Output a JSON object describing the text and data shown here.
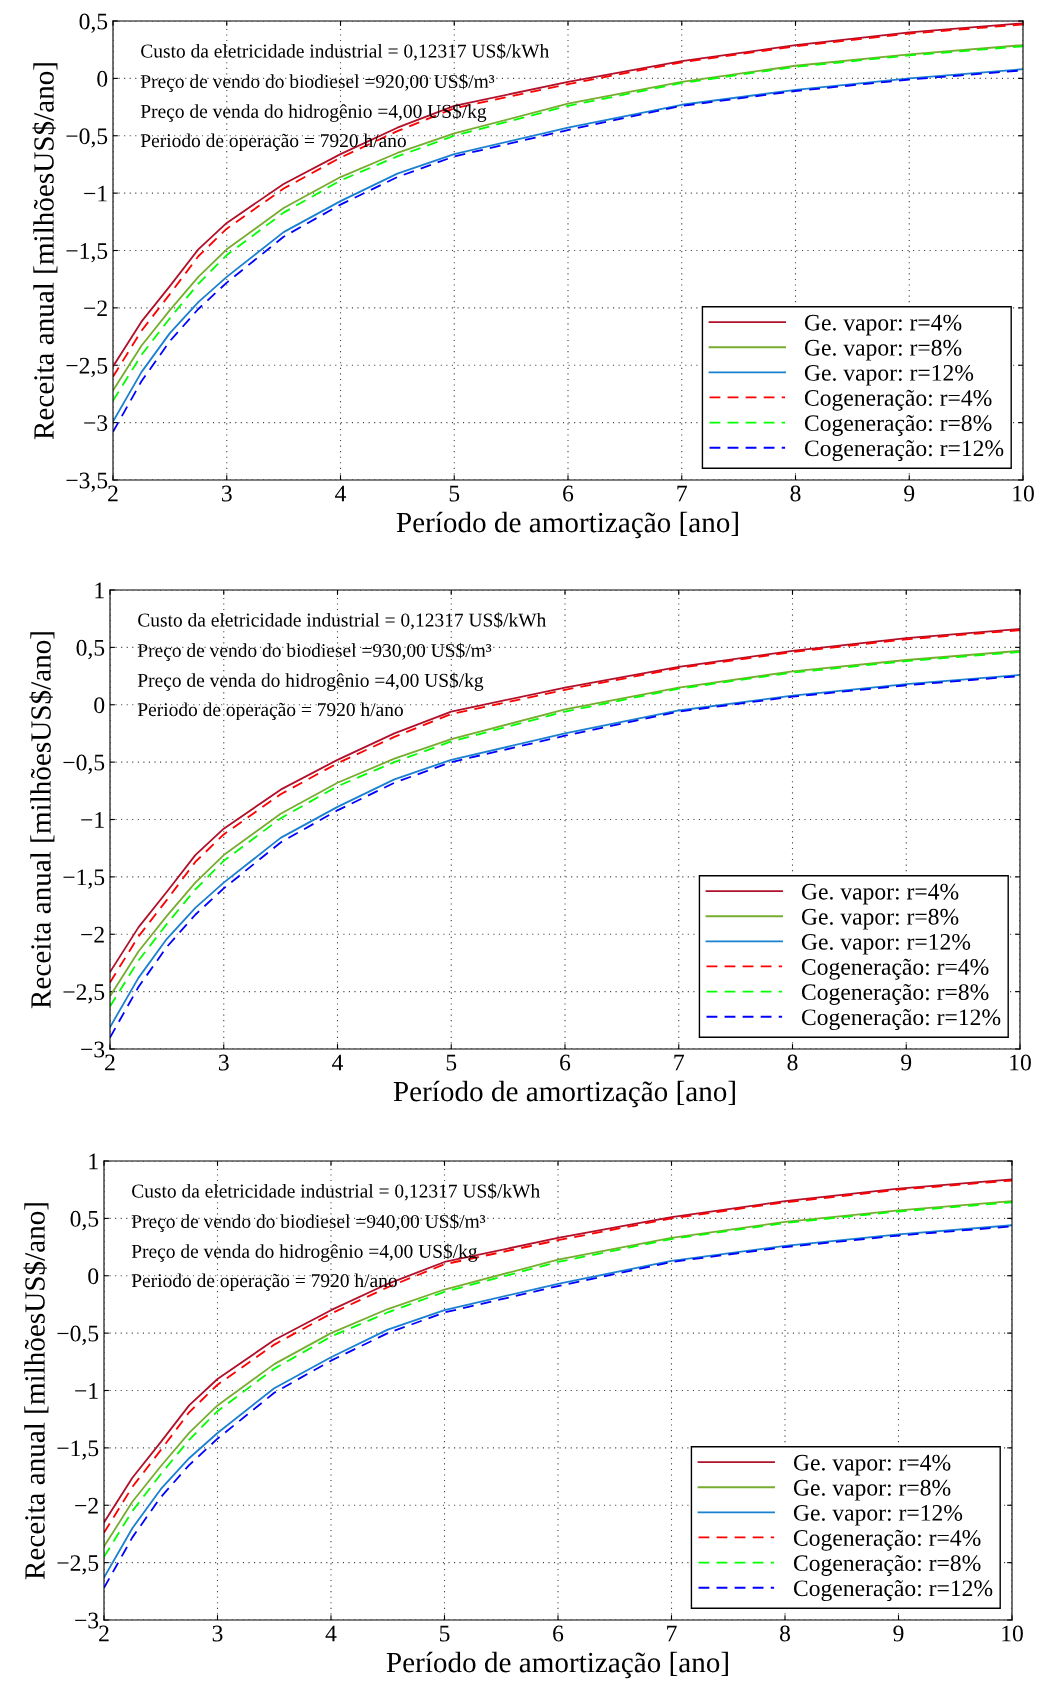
{
  "chart_data": [
    {
      "type": "line",
      "xlabel": "Período de amortização [ano]",
      "ylabel": "Receita anual [milhõesUS$/ano]",
      "annotations": [
        "Custo da eletricidade industrial = 0,12317 US$/kWh",
        "Preço de vendo do biodiesel =920,00 US$/m³",
        "Preço de venda do hidrogênio =4,00 US$/kg",
        "Periodo de operação = 7920 h/ano"
      ],
      "x": [
        2,
        2.25,
        2.5,
        2.75,
        3,
        3.5,
        4,
        4.5,
        5,
        6,
        7,
        8,
        9,
        10
      ],
      "xlim": [
        2,
        10
      ],
      "xticks": [
        2,
        3,
        4,
        5,
        6,
        7,
        8,
        9,
        10
      ],
      "ylim": [
        -3.5,
        0.5
      ],
      "yticks": [
        {
          "value": -3.5,
          "label": "−3,5"
        },
        {
          "value": -3,
          "label": "−3"
        },
        {
          "value": -2.5,
          "label": "−2,5"
        },
        {
          "value": -2,
          "label": "−2"
        },
        {
          "value": -1.5,
          "label": "−1,5"
        },
        {
          "value": -1,
          "label": "−1"
        },
        {
          "value": -0.5,
          "label": "−0,5"
        },
        {
          "value": 0,
          "label": "0"
        },
        {
          "value": 0.5,
          "label": "0,5"
        }
      ],
      "grid": true,
      "legend": "bottom right",
      "series": [
        {
          "name": "Ge. vapor: r=4%",
          "color": "#b0102a",
          "line_style": "solid",
          "values": [
            -2.51,
            -2.12,
            -1.81,
            -1.49,
            -1.26,
            -0.92,
            -0.66,
            -0.43,
            -0.24,
            -0.03,
            0.15,
            0.29,
            0.4,
            0.48
          ]
        },
        {
          "name": "Ge. vapor: r=8%",
          "color": "#77ac30",
          "line_style": "solid",
          "values": [
            -2.72,
            -2.33,
            -2.02,
            -1.73,
            -1.49,
            -1.13,
            -0.86,
            -0.65,
            -0.48,
            -0.22,
            -0.03,
            0.11,
            0.21,
            0.29
          ]
        },
        {
          "name": "Ge. vapor: r=12%",
          "color": "#1a80d0",
          "line_style": "solid",
          "values": [
            -2.99,
            -2.56,
            -2.22,
            -1.95,
            -1.73,
            -1.34,
            -1.07,
            -0.83,
            -0.66,
            -0.43,
            -0.23,
            -0.1,
            0.0,
            0.08
          ]
        },
        {
          "name": "Cogeneração: r=4%",
          "color": "#ff0000",
          "line_style": "dashed",
          "values": [
            -2.6,
            -2.2,
            -1.88,
            -1.55,
            -1.31,
            -0.96,
            -0.69,
            -0.46,
            -0.26,
            -0.05,
            0.14,
            0.28,
            0.39,
            0.47
          ]
        },
        {
          "name": "Cogeneração: r=8%",
          "color": "#00ff00",
          "line_style": "dashed",
          "values": [
            -2.81,
            -2.41,
            -2.09,
            -1.79,
            -1.54,
            -1.17,
            -0.89,
            -0.68,
            -0.5,
            -0.24,
            -0.04,
            0.1,
            0.2,
            0.28
          ]
        },
        {
          "name": "Cogeneração: r=12%",
          "color": "#0000ff",
          "line_style": "dashed",
          "values": [
            -3.08,
            -2.64,
            -2.29,
            -2.01,
            -1.78,
            -1.38,
            -1.1,
            -0.86,
            -0.68,
            -0.45,
            -0.24,
            -0.11,
            -0.01,
            0.07
          ]
        }
      ]
    },
    {
      "type": "line",
      "xlabel": "Período de amortização [ano]",
      "ylabel": "Receita anual [milhõesUS$/ano]",
      "annotations": [
        "Custo da eletricidade industrial = 0,12317 US$/kWh",
        "Preço de vendo do biodiesel =930,00 US$/m³",
        "Preço de venda do hidrogênio =4,00 US$/kg",
        "Periodo de operação = 7920 h/ano"
      ],
      "x": [
        2,
        2.25,
        2.5,
        2.75,
        3,
        3.5,
        4,
        4.5,
        5,
        6,
        7,
        8,
        9,
        10
      ],
      "xlim": [
        2,
        10
      ],
      "xticks": [
        2,
        3,
        4,
        5,
        6,
        7,
        8,
        9,
        10
      ],
      "ylim": [
        -3,
        1
      ],
      "yticks": [
        {
          "value": -3,
          "label": "−3"
        },
        {
          "value": -2.5,
          "label": "−2,5"
        },
        {
          "value": -2,
          "label": "−2"
        },
        {
          "value": -1.5,
          "label": "−1,5"
        },
        {
          "value": -1,
          "label": "−1"
        },
        {
          "value": -0.5,
          "label": "−0,5"
        },
        {
          "value": 0,
          "label": "0"
        },
        {
          "value": 0.5,
          "label": "0,5"
        },
        {
          "value": 1,
          "label": "1"
        }
      ],
      "grid": true,
      "legend": "bottom right",
      "series": [
        {
          "name": "Ge. vapor: r=4%",
          "color": "#b0102a",
          "line_style": "solid",
          "values": [
            -2.33,
            -1.94,
            -1.63,
            -1.31,
            -1.08,
            -0.74,
            -0.48,
            -0.25,
            -0.06,
            0.15,
            0.33,
            0.47,
            0.58,
            0.66
          ]
        },
        {
          "name": "Ge. vapor: r=8%",
          "color": "#77ac30",
          "line_style": "solid",
          "values": [
            -2.54,
            -2.15,
            -1.84,
            -1.55,
            -1.31,
            -0.95,
            -0.68,
            -0.47,
            -0.3,
            -0.04,
            0.15,
            0.29,
            0.39,
            0.47
          ]
        },
        {
          "name": "Ge. vapor: r=12%",
          "color": "#1a80d0",
          "line_style": "solid",
          "values": [
            -2.81,
            -2.38,
            -2.04,
            -1.77,
            -1.55,
            -1.16,
            -0.89,
            -0.65,
            -0.48,
            -0.25,
            -0.05,
            0.08,
            0.18,
            0.26
          ]
        },
        {
          "name": "Cogeneração: r=4%",
          "color": "#ff0000",
          "line_style": "dashed",
          "values": [
            -2.42,
            -2.02,
            -1.7,
            -1.37,
            -1.13,
            -0.78,
            -0.51,
            -0.28,
            -0.08,
            0.13,
            0.32,
            0.46,
            0.57,
            0.65
          ]
        },
        {
          "name": "Cogeneração: r=8%",
          "color": "#00ff00",
          "line_style": "dashed",
          "values": [
            -2.63,
            -2.23,
            -1.91,
            -1.61,
            -1.36,
            -0.99,
            -0.71,
            -0.5,
            -0.32,
            -0.06,
            0.14,
            0.28,
            0.38,
            0.46
          ]
        },
        {
          "name": "Cogeneração: r=12%",
          "color": "#0000ff",
          "line_style": "dashed",
          "values": [
            -2.9,
            -2.46,
            -2.11,
            -1.83,
            -1.6,
            -1.2,
            -0.92,
            -0.68,
            -0.5,
            -0.27,
            -0.06,
            0.07,
            0.17,
            0.25
          ]
        }
      ]
    },
    {
      "type": "line",
      "xlabel": "Período de amortização [ano]",
      "ylabel": "Receita anual [milhõesUS$/ano]",
      "annotations": [
        "Custo da eletricidade industrial = 0,12317 US$/kWh",
        "Preço de vendo do biodiesel =940,00 US$/m³",
        "Preço de venda do hidrogênio =4,00 US$/kg",
        "Periodo de operação = 7920 h/ano"
      ],
      "x": [
        2,
        2.25,
        2.5,
        2.75,
        3,
        3.5,
        4,
        4.5,
        5,
        6,
        7,
        8,
        9,
        10
      ],
      "xlim": [
        2,
        10
      ],
      "xticks": [
        2,
        3,
        4,
        5,
        6,
        7,
        8,
        9,
        10
      ],
      "ylim": [
        -3,
        1
      ],
      "yticks": [
        {
          "value": -3,
          "label": "−3"
        },
        {
          "value": -2.5,
          "label": "−2,5"
        },
        {
          "value": -2,
          "label": "−2"
        },
        {
          "value": -1.5,
          "label": "−1,5"
        },
        {
          "value": -1,
          "label": "−1"
        },
        {
          "value": -0.5,
          "label": "−0,5"
        },
        {
          "value": 0,
          "label": "0"
        },
        {
          "value": 0.5,
          "label": "0,5"
        },
        {
          "value": 1,
          "label": "1"
        }
      ],
      "grid": true,
      "legend": "bottom right",
      "series": [
        {
          "name": "Ge. vapor: r=4%",
          "color": "#b0102a",
          "line_style": "solid",
          "values": [
            -2.15,
            -1.76,
            -1.45,
            -1.13,
            -0.9,
            -0.56,
            -0.3,
            -0.07,
            0.12,
            0.33,
            0.51,
            0.65,
            0.76,
            0.84
          ]
        },
        {
          "name": "Ge. vapor: r=8%",
          "color": "#77ac30",
          "line_style": "solid",
          "values": [
            -2.36,
            -1.97,
            -1.66,
            -1.37,
            -1.13,
            -0.77,
            -0.5,
            -0.29,
            -0.12,
            0.14,
            0.33,
            0.47,
            0.57,
            0.65
          ]
        },
        {
          "name": "Ge. vapor: r=12%",
          "color": "#1a80d0",
          "line_style": "solid",
          "values": [
            -2.63,
            -2.2,
            -1.86,
            -1.59,
            -1.37,
            -0.98,
            -0.71,
            -0.47,
            -0.3,
            -0.07,
            0.13,
            0.26,
            0.36,
            0.44
          ]
        },
        {
          "name": "Cogeneração: r=4%",
          "color": "#ff0000",
          "line_style": "dashed",
          "values": [
            -2.24,
            -1.84,
            -1.52,
            -1.19,
            -0.95,
            -0.6,
            -0.33,
            -0.1,
            0.1,
            0.31,
            0.5,
            0.64,
            0.75,
            0.83
          ]
        },
        {
          "name": "Cogeneração: r=8%",
          "color": "#00ff00",
          "line_style": "dashed",
          "values": [
            -2.45,
            -2.05,
            -1.73,
            -1.43,
            -1.18,
            -0.81,
            -0.53,
            -0.32,
            -0.14,
            0.12,
            0.32,
            0.46,
            0.56,
            0.64
          ]
        },
        {
          "name": "Cogeneração: r=12%",
          "color": "#0000ff",
          "line_style": "dashed",
          "values": [
            -2.72,
            -2.28,
            -1.93,
            -1.65,
            -1.42,
            -1.02,
            -0.74,
            -0.5,
            -0.32,
            -0.09,
            0.12,
            0.25,
            0.35,
            0.43
          ]
        }
      ]
    }
  ]
}
